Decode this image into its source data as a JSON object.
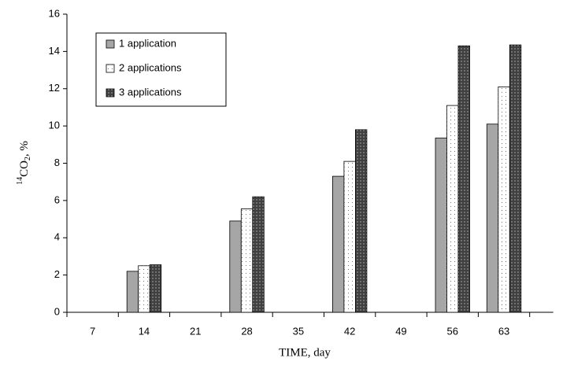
{
  "chart_data": {
    "type": "bar",
    "x_label": "TIME, day",
    "y_label": [
      "14",
      "CO",
      "2",
      ", %"
    ],
    "categories": [
      "7",
      "14",
      "21",
      "28",
      "35",
      "42",
      "49",
      "56",
      "63"
    ],
    "series": [
      {
        "name": "1 application",
        "color": "#a6a6a6",
        "values": [
          null,
          2.2,
          null,
          4.9,
          null,
          7.3,
          null,
          9.35,
          10.1
        ]
      },
      {
        "name": "2 applications",
        "color": "#ffffff",
        "values": [
          null,
          2.5,
          null,
          5.55,
          null,
          8.1,
          null,
          11.1,
          12.1
        ]
      },
      {
        "name": "3 applications",
        "color": "#404040",
        "values": [
          null,
          2.55,
          null,
          6.2,
          null,
          9.8,
          null,
          14.3,
          14.35
        ]
      }
    ],
    "ylim": [
      0,
      16
    ],
    "yticks": [
      0,
      2,
      4,
      6,
      8,
      10,
      12,
      14,
      16
    ],
    "grid": false
  }
}
